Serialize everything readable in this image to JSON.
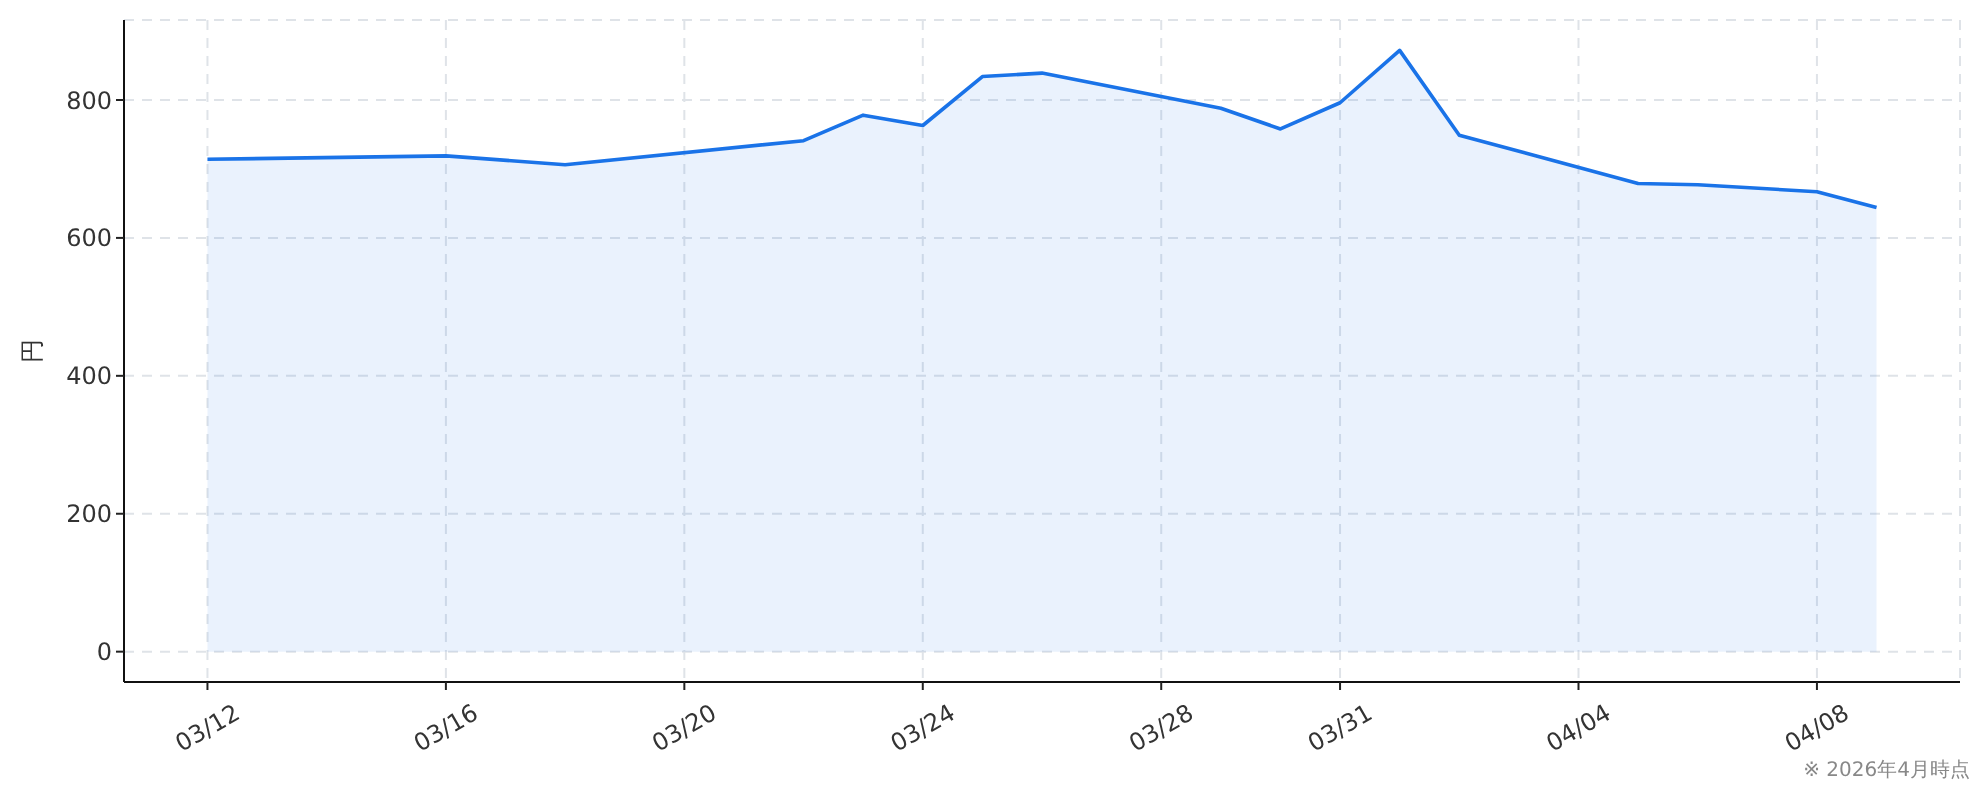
{
  "chart_data": {
    "type": "line",
    "ylabel": "円",
    "annotations": [
      "※ 2026年4月時点"
    ],
    "x": [
      "2026-03-12",
      "2026-03-16",
      "2026-03-18",
      "2026-03-22",
      "2026-03-23",
      "2026-03-24",
      "2026-03-25",
      "2026-03-26",
      "2026-03-29",
      "2026-03-30",
      "2026-03-31",
      "2026-04-01",
      "2026-04-02",
      "2026-04-05",
      "2026-04-06",
      "2026-04-08",
      "2026-04-09"
    ],
    "values": [
      714,
      719,
      706,
      741,
      778,
      763,
      834,
      839,
      788,
      758,
      796,
      872,
      749,
      679,
      677,
      667,
      644
    ],
    "color": "#1a73e8",
    "xlim": [
      "2026-03-10T14:24",
      "2026-04-10T09:36"
    ],
    "ylim": [
      -44,
      916
    ],
    "xticks": [
      {
        "value": "2026-03-12",
        "label": "03/12"
      },
      {
        "value": "2026-03-16",
        "label": "03/16"
      },
      {
        "value": "2026-03-20",
        "label": "03/20"
      },
      {
        "value": "2026-03-24",
        "label": "03/24"
      },
      {
        "value": "2026-03-28",
        "label": "03/28"
      },
      {
        "value": "2026-03-31",
        "label": "03/31"
      },
      {
        "value": "2026-04-04",
        "label": "04/04"
      },
      {
        "value": "2026-04-08",
        "label": "04/08"
      }
    ],
    "yticks": [
      0,
      200,
      400,
      600,
      800
    ],
    "grid": true
  }
}
